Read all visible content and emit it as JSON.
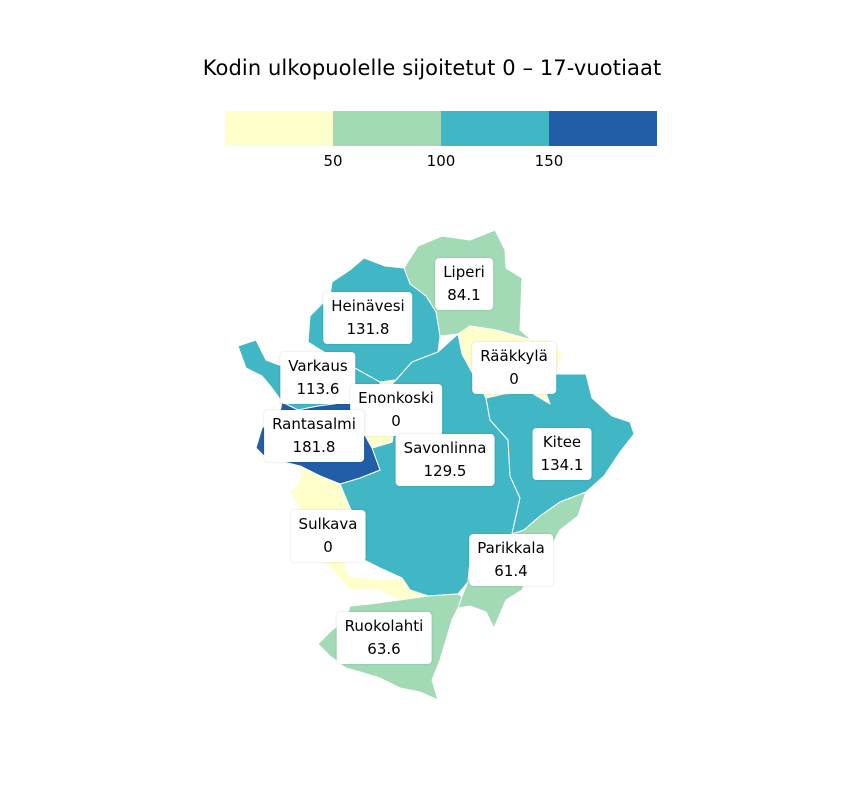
{
  "title": "Kodin ulkopuolelle sijoitetut 0 – 17-vuotiaat",
  "legend": {
    "colors": [
      "#ffffcc",
      "#a1dab4",
      "#41b6c4",
      "#225ea8"
    ],
    "ticks": [
      "50",
      "100",
      "150"
    ]
  },
  "regions": [
    {
      "name": "Liperi",
      "value": "84.1",
      "color": "#a1dab4"
    },
    {
      "name": "Heinävesi",
      "value": "131.8",
      "color": "#41b6c4"
    },
    {
      "name": "Rääkkylä",
      "value": "0",
      "color": "#ffffcc"
    },
    {
      "name": "Varkaus",
      "value": "113.6",
      "color": "#41b6c4"
    },
    {
      "name": "Enonkoski",
      "value": "0",
      "color": "#ffffcc"
    },
    {
      "name": "Rantasalmi",
      "value": "181.8",
      "color": "#225ea8"
    },
    {
      "name": "Savonlinna",
      "value": "129.5",
      "color": "#41b6c4"
    },
    {
      "name": "Kitee",
      "value": "134.1",
      "color": "#41b6c4"
    },
    {
      "name": "Sulkava",
      "value": "0",
      "color": "#ffffcc"
    },
    {
      "name": "Parikkala",
      "value": "61.4",
      "color": "#a1dab4"
    },
    {
      "name": "Ruokolahti",
      "value": "63.6",
      "color": "#a1dab4"
    }
  ]
}
